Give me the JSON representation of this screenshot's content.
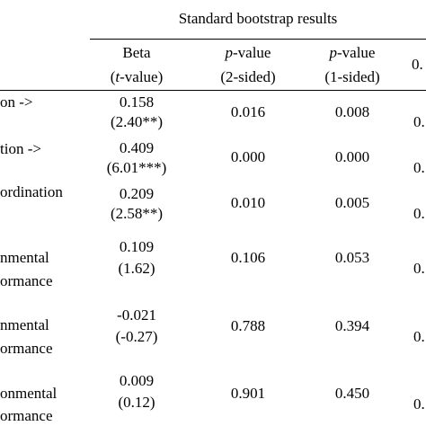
{
  "table": {
    "group_header": "Standard bootstrap results",
    "columns": [
      {
        "line1_ital": "",
        "line1_rest": "Beta",
        "line2_open": "(",
        "line2_ital": "t",
        "line2_rest": "-value)"
      },
      {
        "line1_ital": "p",
        "line1_rest": "-value",
        "line2_open": "",
        "line2_ital": "",
        "line2_rest": "(2-sided)"
      },
      {
        "line1_ital": "p",
        "line1_rest": "-value",
        "line2_open": "",
        "line2_ital": "",
        "line2_rest": "(1-sided)"
      },
      {
        "line1_ital": "",
        "line1_rest": "0.",
        "line2_open": "",
        "line2_ital": "",
        "line2_rest": ""
      }
    ],
    "rows": [
      {
        "label1": "on ->",
        "label2": "",
        "beta": "0.158",
        "t": "(2.40**)",
        "p2": "0.016",
        "p1": "0.008",
        "cut": "0."
      },
      {
        "label1": "tion ->",
        "label2": "",
        "beta": "0.409",
        "t": "(6.01***)",
        "p2": "0.000",
        "p1": "0.000",
        "cut": "0."
      },
      {
        "label1": "ordination",
        "label2": "",
        "beta": "0.209",
        "t": "(2.58**)",
        "p2": "0.010",
        "p1": "0.005",
        "cut": "0."
      },
      {
        "label1": "nmental",
        "label2": "ormance",
        "beta": "0.109",
        "t": "(1.62)",
        "p2": "0.106",
        "p1": "0.053",
        "cut": "0."
      },
      {
        "label1": "nmental",
        "label2": "ormance",
        "beta": "-0.021",
        "t": "(-0.27)",
        "p2": "0.788",
        "p1": "0.394",
        "cut": "0."
      },
      {
        "label1": "onmental",
        "label2": "ormance",
        "beta": "0.009",
        "t": "(0.12)",
        "p2": "0.901",
        "p1": "0.450",
        "cut": "0."
      }
    ]
  }
}
